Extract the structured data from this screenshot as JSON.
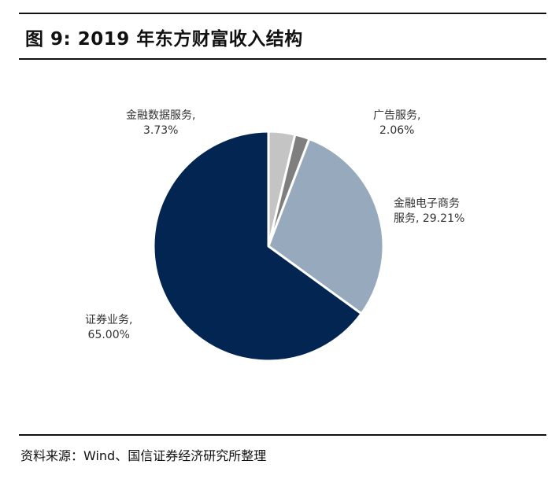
{
  "title": "图 9:  2019 年东方财富收入结构",
  "source": "资料来源：Wind、国信证券经济研究所整理",
  "chart_data": {
    "type": "pie",
    "title": "2019 年东方财富收入结构",
    "slices": [
      {
        "name": "金融数据服务",
        "value": 3.73,
        "label_line1": "金融数据服务,",
        "label_line2": "3.73%",
        "color": "#c4c4c4"
      },
      {
        "name": "广告服务",
        "value": 2.06,
        "label_line1": "广告服务,",
        "label_line2": "2.06%",
        "color": "#7f7f7f"
      },
      {
        "name": "金融电子商务服务",
        "value": 29.21,
        "label_line1": "金融电子商务",
        "label_line2": "服务, 29.21%",
        "color": "#96a9bd"
      },
      {
        "name": "证券业务",
        "value": 65.0,
        "label_line1": "证券业务,",
        "label_line2": "65.00%",
        "color": "#032551"
      }
    ]
  }
}
